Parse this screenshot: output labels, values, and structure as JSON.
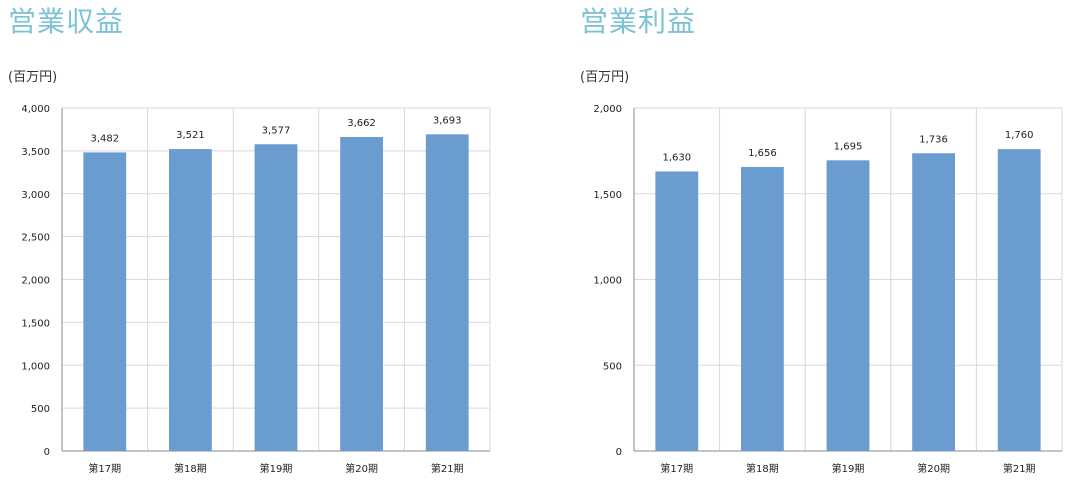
{
  "colors": {
    "title": "#7cc3d6",
    "bar": "#6a9ccf",
    "grid": "#d9d9d9",
    "axis": "#888888"
  },
  "chart_data": [
    {
      "type": "bar",
      "title": "営業収益",
      "unit": "(百万円)",
      "categories": [
        "第17期",
        "第18期",
        "第19期",
        "第20期",
        "第21期"
      ],
      "values": [
        3482,
        3521,
        3577,
        3662,
        3693
      ],
      "value_labels": [
        "3,482",
        "3,521",
        "3,577",
        "3,662",
        "3,693"
      ],
      "yticks": [
        0,
        500,
        1000,
        1500,
        2000,
        2500,
        3000,
        3500,
        4000
      ],
      "ytick_labels": [
        "0",
        "500",
        "1,000",
        "1,500",
        "2,000",
        "2,500",
        "3,000",
        "3,500",
        "4,000"
      ],
      "ylim": [
        0,
        4000
      ],
      "grid": true
    },
    {
      "type": "bar",
      "title": "営業利益",
      "unit": "(百万円)",
      "categories": [
        "第17期",
        "第18期",
        "第19期",
        "第20期",
        "第21期"
      ],
      "values": [
        1630,
        1656,
        1695,
        1736,
        1760
      ],
      "value_labels": [
        "1,630",
        "1,656",
        "1,695",
        "1,736",
        "1,760"
      ],
      "yticks": [
        0,
        500,
        1000,
        1500,
        2000
      ],
      "ytick_labels": [
        "0",
        "500",
        "1,000",
        "1,500",
        "2,000"
      ],
      "ylim": [
        0,
        2000
      ],
      "grid": true
    }
  ]
}
